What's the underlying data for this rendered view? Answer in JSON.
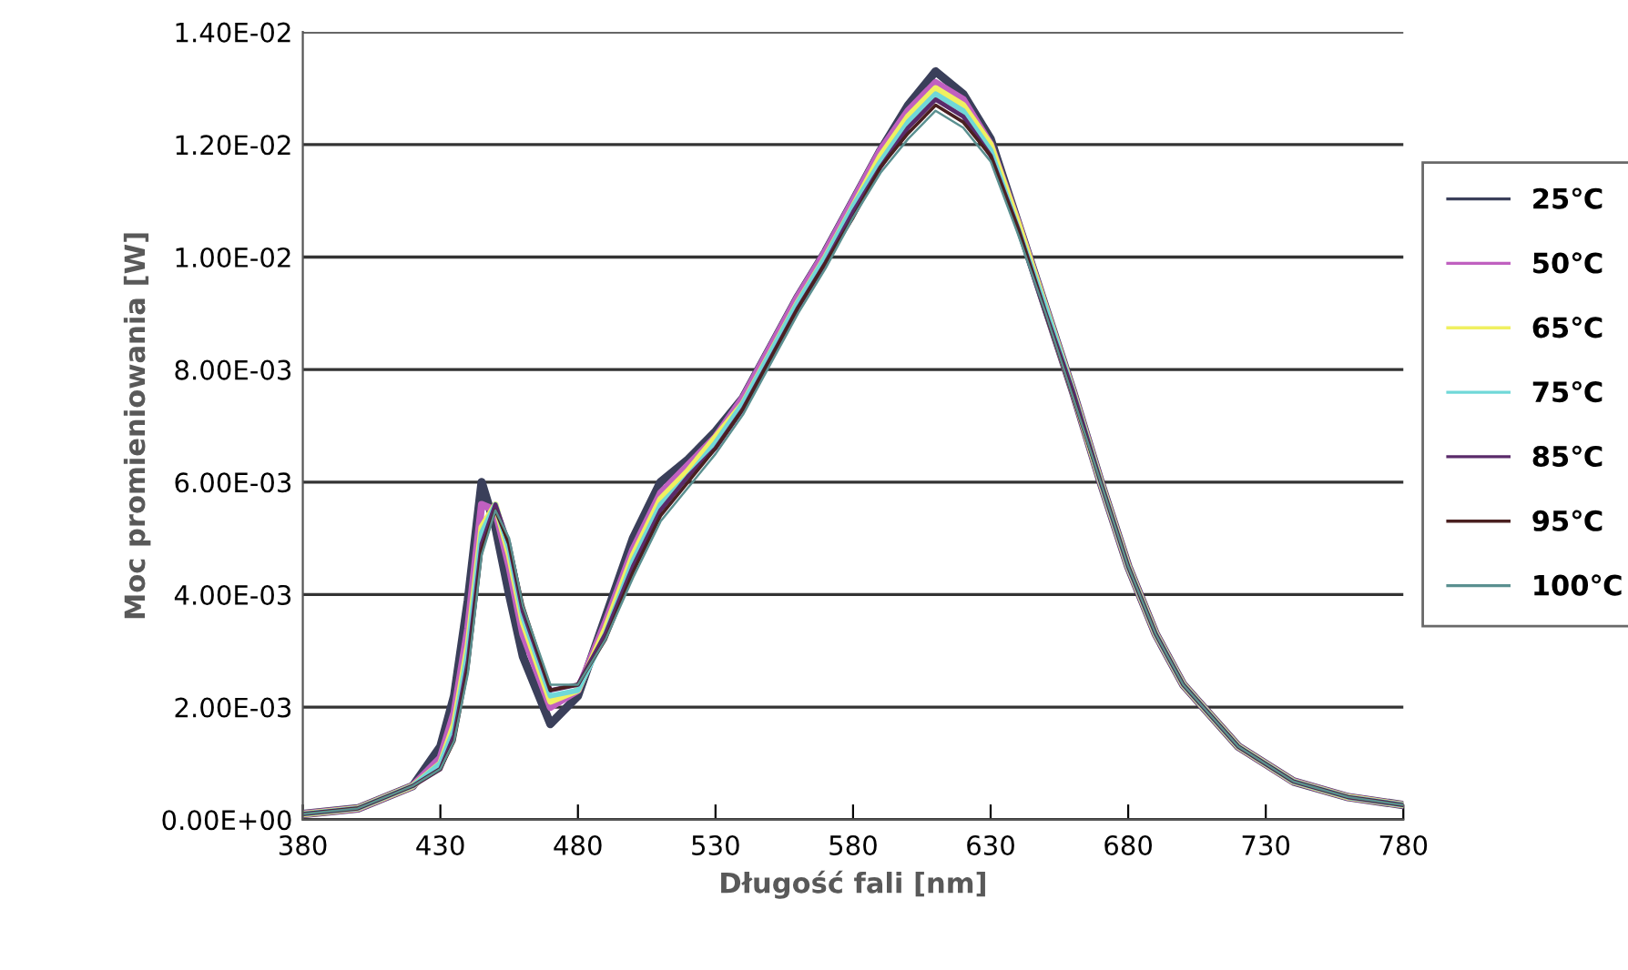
{
  "chart_data": {
    "type": "line",
    "xlabel": "Długość fali [nm]",
    "ylabel": "Moc promieniowania [W]",
    "x": [
      380,
      400,
      420,
      430,
      435,
      440,
      445,
      450,
      455,
      460,
      470,
      480,
      490,
      500,
      510,
      520,
      530,
      540,
      550,
      560,
      570,
      580,
      590,
      600,
      610,
      620,
      630,
      640,
      650,
      660,
      670,
      680,
      690,
      700,
      720,
      740,
      760,
      780
    ],
    "series": [
      {
        "name": "25℃",
        "color": "#3a3f5a",
        "values": [
          0.0001,
          0.0002,
          0.0006,
          0.0013,
          0.0022,
          0.0039,
          0.006,
          0.0052,
          0.004,
          0.0029,
          0.0017,
          0.0022,
          0.0036,
          0.005,
          0.006,
          0.0064,
          0.0069,
          0.0075,
          0.0084,
          0.0093,
          0.0101,
          0.011,
          0.0119,
          0.0127,
          0.0133,
          0.0129,
          0.0121,
          0.0106,
          0.0091,
          0.0076,
          0.006,
          0.0045,
          0.0033,
          0.0024,
          0.0013,
          0.00068,
          0.0004,
          0.00026
        ]
      },
      {
        "name": "50℃",
        "color": "#c060c0",
        "values": [
          0.0001,
          0.0002,
          0.0006,
          0.0011,
          0.0019,
          0.0034,
          0.0056,
          0.0055,
          0.0045,
          0.0033,
          0.002,
          0.0023,
          0.0035,
          0.0048,
          0.0058,
          0.0063,
          0.0068,
          0.0075,
          0.0084,
          0.0093,
          0.0101,
          0.011,
          0.0119,
          0.0126,
          0.0131,
          0.0128,
          0.012,
          0.0106,
          0.0091,
          0.0076,
          0.006,
          0.0045,
          0.0033,
          0.0024,
          0.0013,
          0.00068,
          0.0004,
          0.00026
        ]
      },
      {
        "name": "65℃",
        "color": "#f0f060",
        "values": [
          0.0001,
          0.0002,
          0.0006,
          0.001,
          0.0017,
          0.0031,
          0.0052,
          0.0056,
          0.0047,
          0.0035,
          0.0021,
          0.0023,
          0.0034,
          0.0047,
          0.0057,
          0.0062,
          0.0068,
          0.0074,
          0.0083,
          0.0092,
          0.01,
          0.0109,
          0.0118,
          0.0125,
          0.013,
          0.0127,
          0.012,
          0.0106,
          0.0091,
          0.0076,
          0.006,
          0.0045,
          0.0033,
          0.0024,
          0.0013,
          0.00068,
          0.0004,
          0.00026
        ]
      },
      {
        "name": "75℃",
        "color": "#70d8d8",
        "values": [
          0.0001,
          0.0002,
          0.0006,
          0.001,
          0.0016,
          0.003,
          0.0051,
          0.0056,
          0.0048,
          0.0036,
          0.0022,
          0.0023,
          0.0033,
          0.0046,
          0.0056,
          0.0061,
          0.0067,
          0.0074,
          0.0083,
          0.0092,
          0.01,
          0.0109,
          0.0117,
          0.0124,
          0.0129,
          0.0126,
          0.0119,
          0.0105,
          0.0091,
          0.0076,
          0.006,
          0.0045,
          0.0033,
          0.0024,
          0.0013,
          0.00068,
          0.0004,
          0.00026
        ]
      },
      {
        "name": "85℃",
        "color": "#5a2a6a",
        "values": [
          0.0001,
          0.0002,
          0.0006,
          0.0009,
          0.0015,
          0.0028,
          0.0049,
          0.0056,
          0.0049,
          0.0037,
          0.0023,
          0.0024,
          0.0033,
          0.0045,
          0.0055,
          0.0061,
          0.0066,
          0.0073,
          0.0082,
          0.0091,
          0.0099,
          0.0108,
          0.0116,
          0.0123,
          0.0128,
          0.0125,
          0.0118,
          0.0105,
          0.009,
          0.0076,
          0.006,
          0.0045,
          0.0033,
          0.0024,
          0.0013,
          0.00068,
          0.0004,
          0.00026
        ]
      },
      {
        "name": "95℃",
        "color": "#4a2020",
        "values": [
          0.0001,
          0.0002,
          0.0006,
          0.0009,
          0.0014,
          0.0027,
          0.0048,
          0.0055,
          0.0049,
          0.0038,
          0.0023,
          0.0024,
          0.0032,
          0.0044,
          0.0054,
          0.006,
          0.0066,
          0.0073,
          0.0082,
          0.0091,
          0.0099,
          0.0107,
          0.0116,
          0.0122,
          0.0127,
          0.0124,
          0.0118,
          0.0105,
          0.009,
          0.0075,
          0.006,
          0.0045,
          0.0033,
          0.0024,
          0.0013,
          0.00068,
          0.0004,
          0.00026
        ]
      },
      {
        "name": "100℃",
        "color": "#5a9090",
        "values": [
          0.0001,
          0.0002,
          0.0006,
          0.0009,
          0.0014,
          0.0026,
          0.0047,
          0.0055,
          0.005,
          0.0038,
          0.0024,
          0.0024,
          0.0032,
          0.0043,
          0.0053,
          0.0059,
          0.0065,
          0.0072,
          0.0081,
          0.009,
          0.0098,
          0.0107,
          0.0115,
          0.0121,
          0.0126,
          0.0123,
          0.0117,
          0.0104,
          0.009,
          0.0075,
          0.006,
          0.0045,
          0.0033,
          0.0024,
          0.0013,
          0.00068,
          0.0004,
          0.00026
        ]
      }
    ],
    "xlim": [
      380,
      780
    ],
    "xticks": [
      380,
      430,
      480,
      530,
      580,
      630,
      680,
      730,
      780
    ],
    "ylim": [
      0,
      0.014
    ],
    "yticks": [
      {
        "value": 0,
        "label": "0.00E+00"
      },
      {
        "value": 0.002,
        "label": "2.00E-03"
      },
      {
        "value": 0.004,
        "label": "4.00E-03"
      },
      {
        "value": 0.006,
        "label": "6.00E-03"
      },
      {
        "value": 0.008,
        "label": "8.00E-03"
      },
      {
        "value": 0.01,
        "label": "1.00E-02"
      },
      {
        "value": 0.012,
        "label": "1.20E-02"
      },
      {
        "value": 0.014,
        "label": "1.40E-02"
      }
    ],
    "grid": "y",
    "legend": "right",
    "marker": "none",
    "line_style": "solid"
  }
}
